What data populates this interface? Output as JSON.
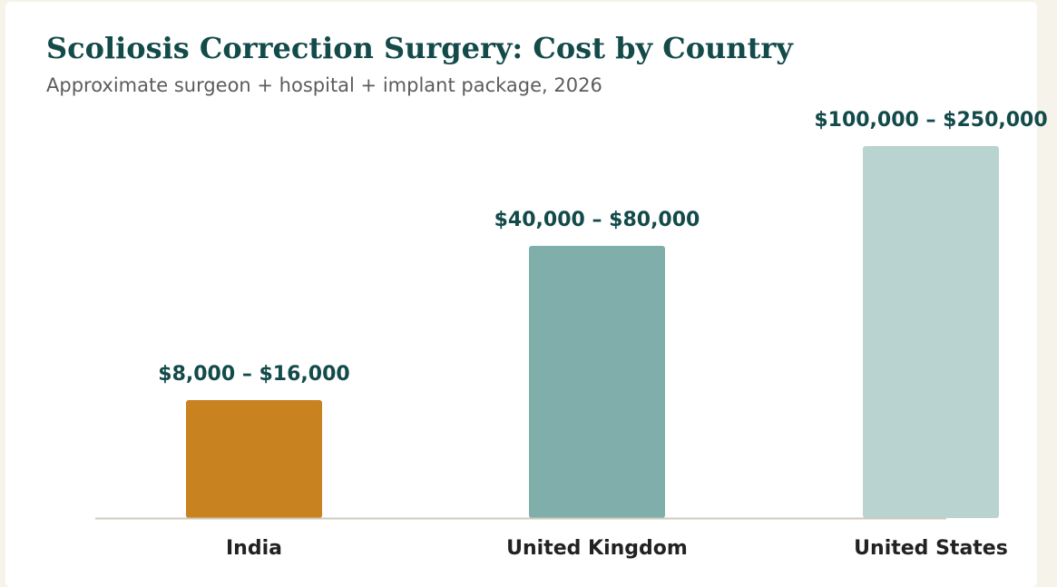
{
  "chart_data": {
    "type": "bar",
    "title": "Scoliosis Correction Surgery: Cost by Country",
    "subtitle": "Approximate surgeon + hospital + implant package, 2026",
    "categories": [
      "India",
      "United Kingdom",
      "United States"
    ],
    "value_labels": [
      "$8,000 – $16,000",
      "$40,000 – $80,000",
      "$100,000 – $250,000"
    ],
    "ranges": [
      [
        8000,
        16000
      ],
      [
        40000,
        80000
      ],
      [
        100000,
        250000
      ]
    ],
    "values": [
      130,
      300,
      410
    ],
    "colors": [
      "#c98220",
      "#80aeab",
      "#b8d3d0"
    ],
    "xlabel": "",
    "ylabel": "",
    "grid": false,
    "legend": "none"
  }
}
